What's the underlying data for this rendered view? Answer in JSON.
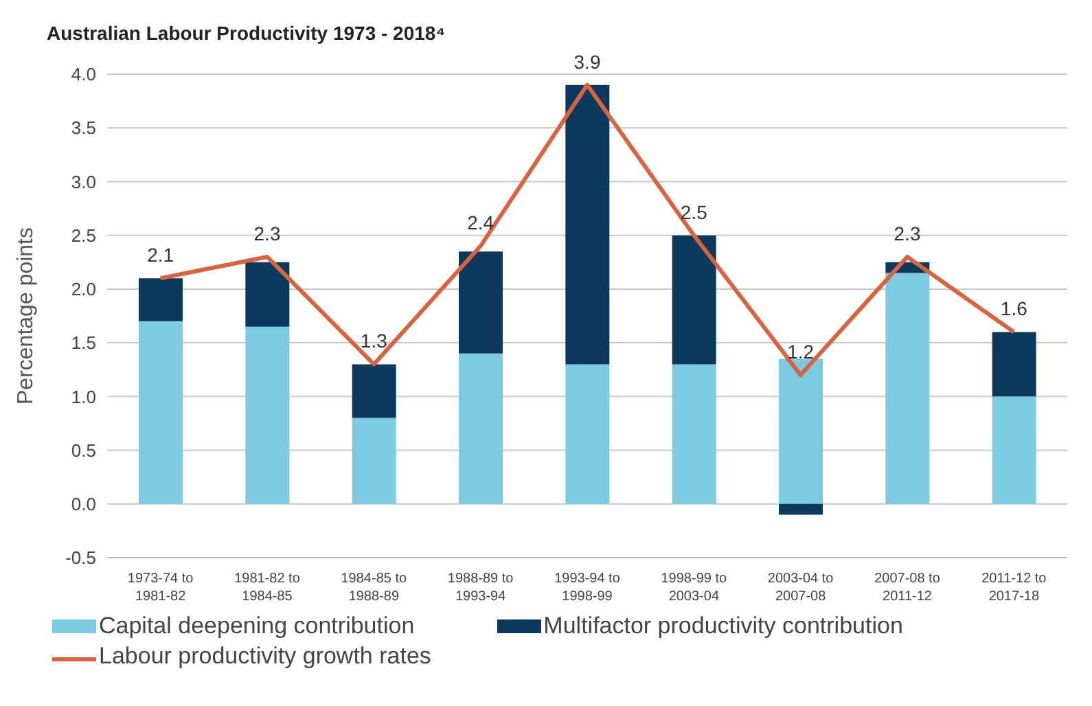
{
  "chart_data": {
    "type": "bar",
    "stacked": true,
    "title": "Australian Labour Productivity 1973 - 2018⁴",
    "ylabel": "Percentage points",
    "categories": [
      "1973-74 to 1981-82",
      "1981-82 to 1984-85",
      "1984-85 to 1988-89",
      "1988-89 to 1993-94",
      "1993-94 to 1998-99",
      "1998-99 to 2003-04",
      "2003-04 to 2007-08",
      "2007-08 to 2011-12",
      "2011-12 to 2017-18"
    ],
    "series": [
      {
        "name": "Capital deepening contribution",
        "color": "#7ccbe0",
        "values": [
          1.7,
          1.65,
          0.8,
          1.4,
          1.3,
          1.3,
          1.35,
          2.15,
          1.0
        ]
      },
      {
        "name": "Multifactor productivity contribution",
        "color": "#0b3a5c",
        "values": [
          0.4,
          0.6,
          0.5,
          0.95,
          2.6,
          1.2,
          -0.1,
          0.1,
          0.6
        ]
      },
      {
        "name": "Labour productivity growth rates",
        "type": "line",
        "color": "#d9633f",
        "values": [
          2.1,
          2.3,
          1.3,
          2.4,
          3.9,
          2.5,
          1.2,
          2.3,
          1.6
        ],
        "value_labels": [
          "2.1",
          "2.3",
          "1.3",
          "2.4",
          "3.9",
          "2.5",
          "1.2",
          "2.3",
          "1.6"
        ]
      }
    ],
    "ylim": [
      -0.5,
      4.0
    ],
    "yticks": [
      {
        "value": -0.5,
        "label": "-0.5"
      },
      {
        "value": 0,
        "label": "0.0"
      },
      {
        "value": 0.5,
        "label": "0.5"
      },
      {
        "value": 1,
        "label": "1.0"
      },
      {
        "value": 1.5,
        "label": "1.5"
      },
      {
        "value": 2,
        "label": "2.0"
      },
      {
        "value": 2.5,
        "label": "2.5"
      },
      {
        "value": 3,
        "label": "3.0"
      },
      {
        "value": 3.5,
        "label": "3.5"
      },
      {
        "value": 4,
        "label": "4.0"
      }
    ],
    "grid": "y",
    "legend": "bottom",
    "marker": "none"
  }
}
